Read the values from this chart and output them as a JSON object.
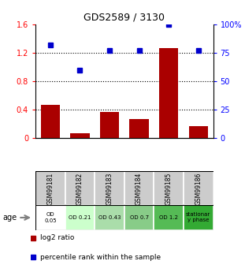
{
  "title": "GDS2589 / 3130",
  "samples": [
    "GSM99181",
    "GSM99182",
    "GSM99183",
    "GSM99184",
    "GSM99185",
    "GSM99186"
  ],
  "log2_ratio": [
    0.47,
    0.07,
    0.37,
    0.27,
    1.27,
    0.17
  ],
  "percentile_rank": [
    82,
    60,
    77,
    77,
    100,
    77
  ],
  "bar_color": "#aa0000",
  "dot_color": "#0000cc",
  "left_ylim": [
    0,
    1.6
  ],
  "right_ylim": [
    0,
    100
  ],
  "left_yticks": [
    0,
    0.4,
    0.8,
    1.2,
    1.6
  ],
  "right_yticks": [
    0,
    25,
    50,
    75,
    100
  ],
  "left_yticklabels": [
    "0",
    "0.4",
    "0.8",
    "1.2",
    "1.6"
  ],
  "right_yticklabels": [
    "0",
    "25",
    "50",
    "75",
    "100%"
  ],
  "dotted_lines": [
    0.4,
    0.8,
    1.2
  ],
  "age_labels": [
    "OD\n0.05",
    "OD 0.21",
    "OD 0.43",
    "OD 0.7",
    "OD 1.2",
    "stationar\ny phase"
  ],
  "age_bg_colors": [
    "#ffffff",
    "#ccffcc",
    "#aaddaa",
    "#88cc88",
    "#55bb55",
    "#33aa33"
  ],
  "sample_bg_color": "#cccccc",
  "legend_log2": "log2 ratio",
  "legend_pct": "percentile rank within the sample"
}
